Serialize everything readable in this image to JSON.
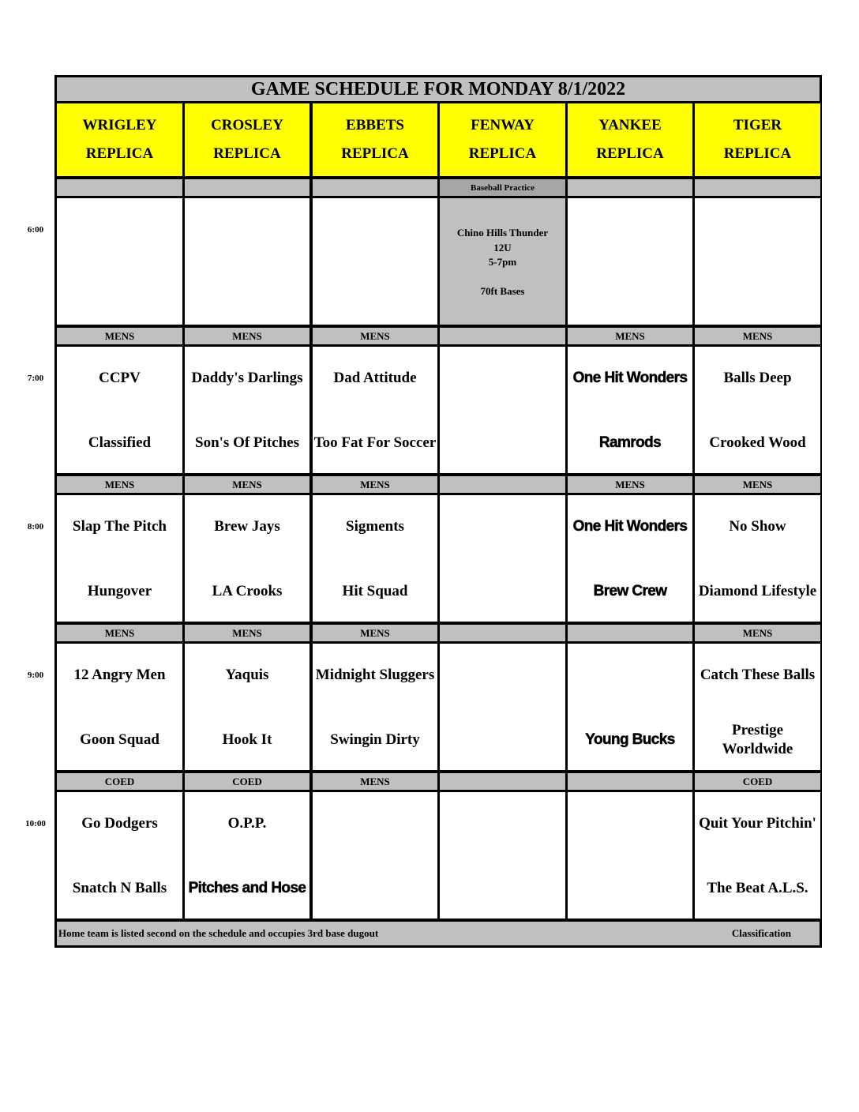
{
  "title": "GAME SCHEDULE FOR MONDAY 8/1/2022",
  "fields": [
    {
      "name": "WRIGLEY",
      "sub": "REPLICA"
    },
    {
      "name": "CROSLEY",
      "sub": "REPLICA"
    },
    {
      "name": "EBBETS",
      "sub": "REPLICA"
    },
    {
      "name": "FENWAY",
      "sub": "REPLICA"
    },
    {
      "name": "YANKEE",
      "sub": "REPLICA"
    },
    {
      "name": "TIGER",
      "sub": "REPLICA"
    }
  ],
  "rows": [
    {
      "time": "6:00",
      "classes": [
        "",
        "",
        "",
        "Baseball Practice",
        "",
        ""
      ],
      "games": [
        {
          "away": "",
          "home": ""
        },
        {
          "away": "",
          "home": ""
        },
        {
          "away": "",
          "home": ""
        },
        {
          "lines": [
            "Chino Hills Thunder",
            "12U",
            "5-7pm",
            "",
            "70ft Bases"
          ]
        },
        {
          "away": "",
          "home": ""
        },
        {
          "away": "",
          "home": ""
        }
      ]
    },
    {
      "time": "7:00",
      "classes": [
        "MENS",
        "MENS",
        "MENS",
        "",
        "MENS",
        "MENS"
      ],
      "games": [
        {
          "away": "CCPV",
          "home": "Classified"
        },
        {
          "away": "Daddy's Darlings",
          "home": "Son's Of Pitches"
        },
        {
          "away": "Dad Attitude",
          "home": "Too Fat For Soccer"
        },
        {
          "away": "",
          "home": ""
        },
        {
          "away": "One Hit Wonders",
          "home": "Ramrods"
        },
        {
          "away": "Balls Deep",
          "home": "Crooked Wood"
        }
      ]
    },
    {
      "time": "8:00",
      "classes": [
        "MENS",
        "MENS",
        "MENS",
        "",
        "MENS",
        "MENS"
      ],
      "games": [
        {
          "away": "Slap The Pitch",
          "home": "Hungover"
        },
        {
          "away": "Brew Jays",
          "home": "LA Crooks"
        },
        {
          "away": "Sigments",
          "home": "Hit Squad"
        },
        {
          "away": "",
          "home": ""
        },
        {
          "away": "One Hit Wonders",
          "home": "Brew Crew"
        },
        {
          "away": "No Show",
          "home": "Diamond Lifestyle"
        }
      ]
    },
    {
      "time": "9:00",
      "classes": [
        "MENS",
        "MENS",
        "MENS",
        "",
        "",
        "MENS"
      ],
      "games": [
        {
          "away": "12 Angry Men",
          "home": "Goon Squad"
        },
        {
          "away": "Yaquis",
          "home": "Hook It"
        },
        {
          "away": "Midnight Sluggers",
          "home": "Swingin Dirty"
        },
        {
          "away": "",
          "home": ""
        },
        {
          "away": "",
          "home": "Young Bucks"
        },
        {
          "away": "Catch These Balls",
          "home": "Prestige Worldwide"
        }
      ]
    },
    {
      "time": "10:00",
      "classes": [
        "COED",
        "COED",
        "MENS",
        "",
        "",
        "COED"
      ],
      "games": [
        {
          "away": "Go Dodgers",
          "home": "Snatch N Balls"
        },
        {
          "away": "O.P.P.",
          "home": "Pitches and Hose"
        },
        {
          "away": "",
          "home": ""
        },
        {
          "away": "",
          "home": ""
        },
        {
          "away": "",
          "home": ""
        },
        {
          "away": "Quit Your Pitchin'",
          "home": "The Beat A.L.S."
        }
      ]
    }
  ],
  "footer": {
    "note": "Home team is listed second on the schedule and occupies 3rd base dugout",
    "legend": "Classification"
  },
  "colors": {
    "header": "#ffff00",
    "band": "#c0c0c0",
    "border": "#000000"
  }
}
